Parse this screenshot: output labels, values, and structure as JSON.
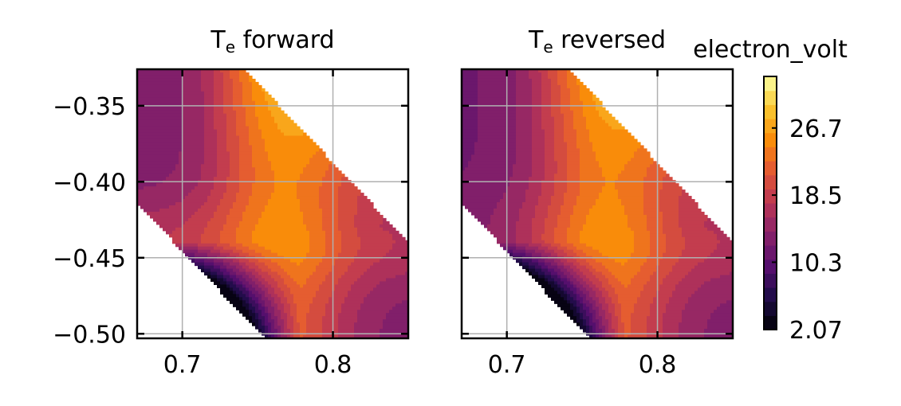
{
  "chart_data": {
    "type": "contourf",
    "colormap": "inferno",
    "colorbar": {
      "label": "electron_volt",
      "ticks": [
        "2.07",
        "10.3",
        "18.5",
        "26.7"
      ],
      "tick_values": [
        2.07,
        10.3,
        18.5,
        26.7
      ],
      "range": [
        2.07,
        33.0
      ]
    },
    "shared_y_axis": true,
    "grid": true,
    "panels": [
      {
        "title_main": "T",
        "title_sub": "e",
        "title_rest": " forward",
        "xlim": [
          0.67,
          0.85
        ],
        "ylim": [
          -0.503,
          -0.326
        ],
        "xticks": [
          {
            "value": 0.7,
            "label": "0.7"
          },
          {
            "value": 0.8,
            "label": "0.8"
          }
        ],
        "yticks": [
          {
            "value": -0.35,
            "label": "−0.35"
          },
          {
            "value": -0.4,
            "label": "−0.40"
          },
          {
            "value": -0.45,
            "label": "−0.45"
          },
          {
            "value": -0.5,
            "label": "−0.50"
          }
        ]
      },
      {
        "title_main": "T",
        "title_sub": "e",
        "title_rest": " reversed",
        "xlim": [
          0.67,
          0.85
        ],
        "ylim": [
          -0.503,
          -0.326
        ],
        "xticks": [
          {
            "value": 0.7,
            "label": "0.7"
          },
          {
            "value": 0.8,
            "label": "0.8"
          }
        ],
        "yticks": [
          {
            "value": -0.35,
            "label": ""
          },
          {
            "value": -0.4,
            "label": ""
          },
          {
            "value": -0.45,
            "label": ""
          },
          {
            "value": -0.5,
            "label": ""
          }
        ]
      }
    ]
  }
}
